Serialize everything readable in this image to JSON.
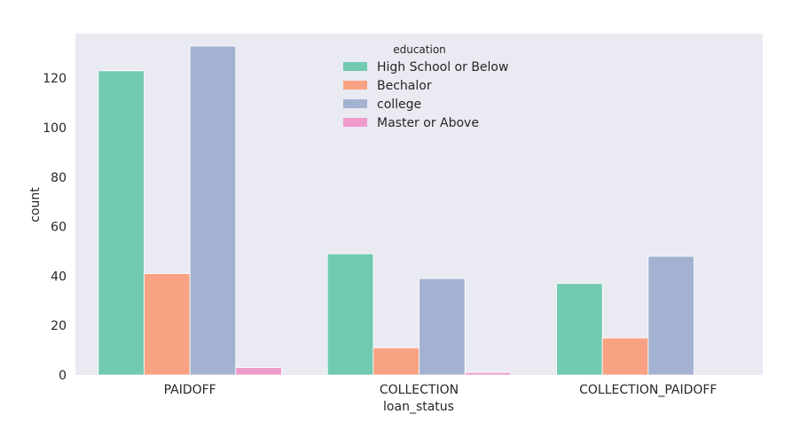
{
  "chart_data": {
    "type": "bar",
    "categories": [
      "PAIDOFF",
      "COLLECTION",
      "COLLECTION_PAIDOFF"
    ],
    "series": [
      {
        "name": "High School or Below",
        "values": [
          123,
          49,
          37
        ],
        "color": "#72c9b1"
      },
      {
        "name": "Bechalor",
        "values": [
          41,
          11,
          15
        ],
        "color": "#f8a283"
      },
      {
        "name": "college",
        "values": [
          133,
          39,
          48
        ],
        "color": "#a4b2d2"
      },
      {
        "name": "Master or Above",
        "values": [
          3,
          1,
          0
        ],
        "color": "#ee9bcb"
      }
    ],
    "xlabel": "loan_status",
    "ylabel": "count",
    "ylim": [
      0,
      138
    ],
    "yticks": [
      0,
      20,
      40,
      60,
      80,
      100,
      120
    ],
    "legend": {
      "title": "education",
      "placement": "top-center"
    },
    "grid": false,
    "background": "#eaeaf2"
  }
}
